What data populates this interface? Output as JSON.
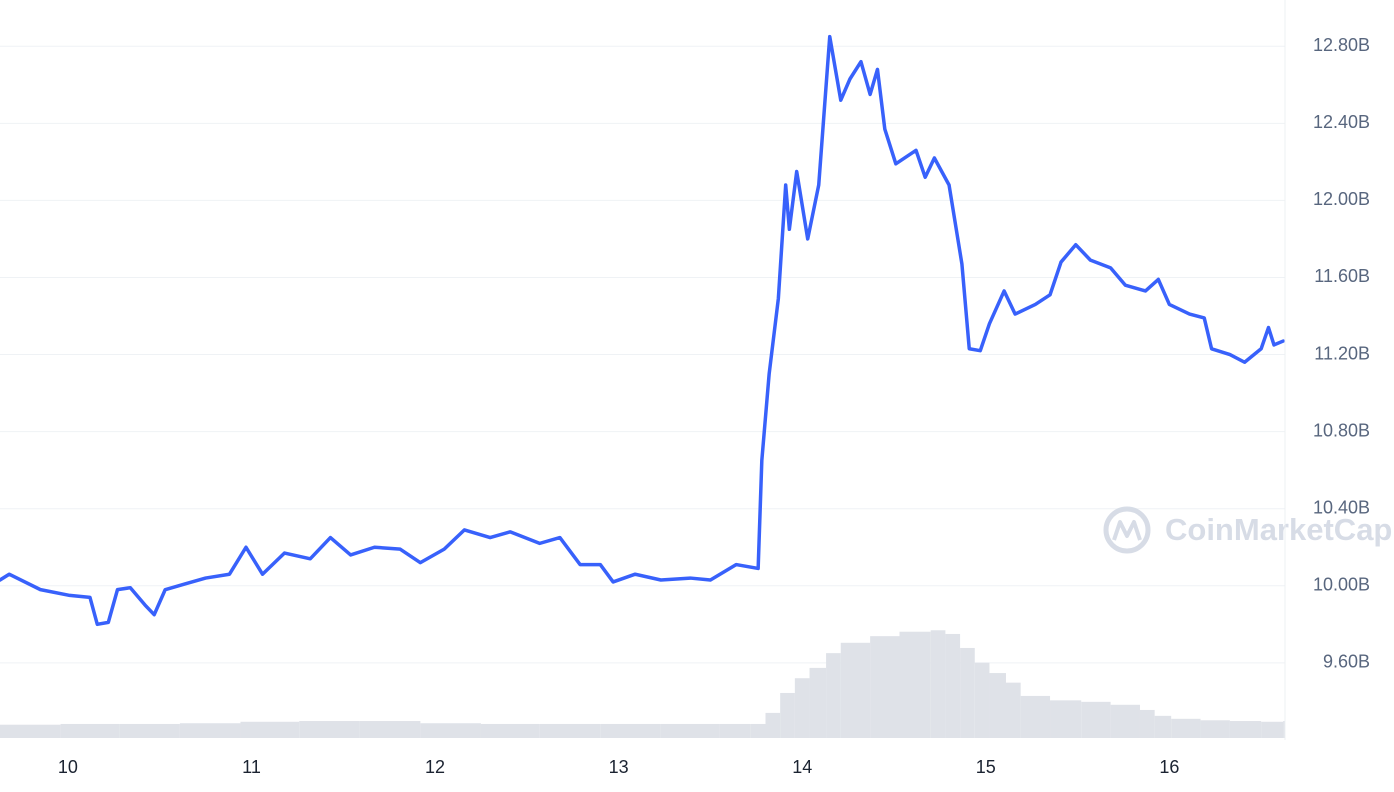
{
  "chart_data": {
    "type": "line",
    "watermark": "CoinMarketCap",
    "x": [
      9.63,
      9.68,
      9.85,
      10.01,
      10.12,
      10.16,
      10.22,
      10.27,
      10.34,
      10.42,
      10.47,
      10.53,
      10.64,
      10.75,
      10.88,
      10.97,
      11.06,
      11.18,
      11.32,
      11.43,
      11.54,
      11.67,
      11.81,
      11.92,
      12.05,
      12.16,
      12.3,
      12.41,
      12.57,
      12.68,
      12.79,
      12.9,
      12.97,
      13.09,
      13.23,
      13.39,
      13.5,
      13.64,
      13.76,
      13.78,
      13.82,
      13.87,
      13.91,
      13.93,
      13.97,
      14.03,
      14.09,
      14.15,
      14.21,
      14.26,
      14.32,
      14.37,
      14.41,
      14.45,
      14.51,
      14.62,
      14.67,
      14.72,
      14.8,
      14.87,
      14.91,
      14.97,
      15.02,
      15.1,
      15.16,
      15.27,
      15.35,
      15.41,
      15.49,
      15.57,
      15.68,
      15.76,
      15.87,
      15.94,
      16.0,
      16.11,
      16.19,
      16.23,
      16.33,
      16.41,
      16.5,
      16.54,
      16.57,
      16.62
    ],
    "series": [
      {
        "color": "#3861fb",
        "values": [
          10.03,
          10.06,
          9.98,
          9.95,
          9.94,
          9.8,
          9.81,
          9.98,
          9.99,
          9.9,
          9.85,
          9.98,
          10.01,
          10.04,
          10.06,
          10.2,
          10.06,
          10.17,
          10.14,
          10.25,
          10.16,
          10.2,
          10.19,
          10.12,
          10.19,
          10.29,
          10.25,
          10.28,
          10.22,
          10.25,
          10.11,
          10.11,
          10.02,
          10.06,
          10.03,
          10.04,
          10.03,
          10.11,
          10.09,
          10.65,
          11.1,
          11.49,
          12.08,
          11.85,
          12.15,
          11.8,
          12.08,
          12.85,
          12.52,
          12.63,
          12.72,
          12.55,
          12.68,
          12.37,
          12.19,
          12.26,
          12.12,
          12.22,
          12.08,
          11.67,
          11.23,
          11.22,
          11.36,
          11.53,
          11.41,
          11.46,
          11.51,
          11.68,
          11.77,
          11.69,
          11.65,
          11.56,
          11.53,
          11.59,
          11.46,
          11.41,
          11.39,
          11.23,
          11.2,
          11.16,
          11.23,
          11.34,
          11.25,
          11.27
        ]
      }
    ],
    "volume": {
      "color": "#dfe2e8",
      "x": [
        9.63,
        9.96,
        10.28,
        10.61,
        10.94,
        11.26,
        11.59,
        11.92,
        12.25,
        12.57,
        12.9,
        13.23,
        13.55,
        13.72,
        13.8,
        13.88,
        13.96,
        14.04,
        14.13,
        14.21,
        14.37,
        14.53,
        14.7,
        14.78,
        14.86,
        14.94,
        15.02,
        15.11,
        15.19,
        15.35,
        15.52,
        15.68,
        15.84,
        15.92,
        16.01,
        16.17,
        16.33,
        16.5,
        16.62
      ],
      "values": [
        1.8,
        1.9,
        1.9,
        2.0,
        2.2,
        2.3,
        2.3,
        2.0,
        1.9,
        1.9,
        1.9,
        1.9,
        1.9,
        1.9,
        3.4,
        6.1,
        8.1,
        9.5,
        11.5,
        12.9,
        13.8,
        14.4,
        14.6,
        14.1,
        12.2,
        10.2,
        8.8,
        7.5,
        5.7,
        5.1,
        4.9,
        4.5,
        3.8,
        3.0,
        2.6,
        2.4,
        2.3,
        2.2,
        2.3
      ]
    },
    "xlim": [
      9.63,
      16.63
    ],
    "xticks": [
      10,
      11,
      12,
      13,
      14,
      15,
      16
    ],
    "ylim": [
      9.21,
      13.04
    ],
    "yticks": [
      {
        "value": 9.6,
        "label": "9.60B"
      },
      {
        "value": 10.0,
        "label": "10.00B"
      },
      {
        "value": 10.4,
        "label": "10.40B"
      },
      {
        "value": 10.8,
        "label": "10.80B"
      },
      {
        "value": 11.2,
        "label": "11.20B"
      },
      {
        "value": 11.6,
        "label": "11.60B"
      },
      {
        "value": 12.0,
        "label": "12.00B"
      },
      {
        "value": 12.4,
        "label": "12.40B"
      },
      {
        "value": 12.8,
        "label": "12.80B"
      }
    ],
    "y2lim": [
      0,
      100
    ],
    "grid": true
  }
}
